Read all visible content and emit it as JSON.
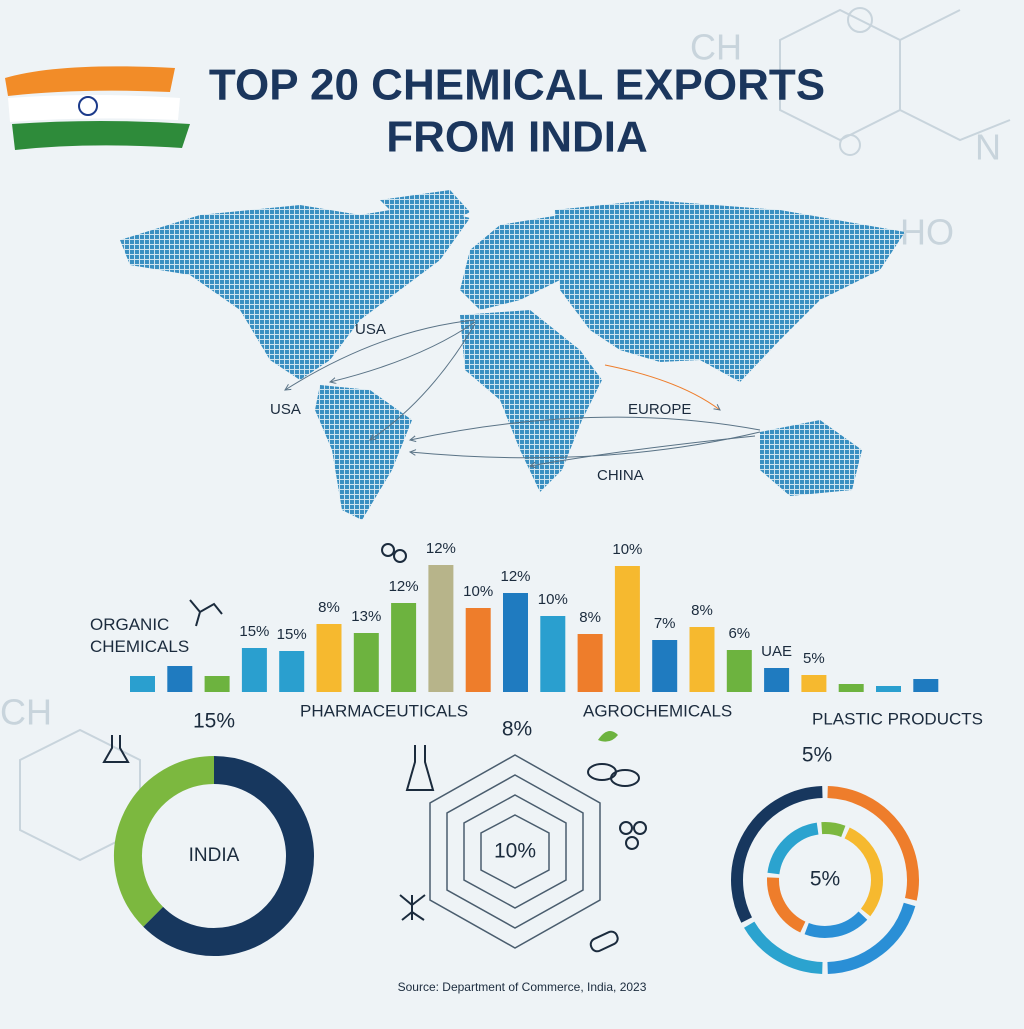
{
  "header": {
    "title_lines": [
      "TOP 20 CHEMICAL EXPORTS",
      "FROM INDIA"
    ]
  },
  "map": {
    "labels": [
      "USA",
      "USA",
      "EUROPE",
      "CHINA"
    ]
  },
  "hexagon": {
    "label": "8%",
    "center": "10%"
  },
  "source": "Source: Department of Commerce, India, 2023",
  "chart_data": [
    {
      "type": "bar",
      "group_labels": [
        "ORGANIC CHEMICALS",
        "PHARMACEUTICALS",
        "AGROCHEMICALS",
        "PLASTIC PRODUCTS"
      ],
      "values": [
        16,
        26,
        16,
        44,
        41,
        68,
        59,
        89,
        127,
        84,
        99,
        76,
        58,
        126,
        52,
        65,
        42,
        24,
        17,
        8,
        6,
        13
      ],
      "labels": [
        null,
        null,
        null,
        "15%",
        "15%",
        "8%",
        "13%",
        "12%",
        "12%",
        "10%",
        "12%",
        "10%",
        "8%",
        "10%",
        "7%",
        "8%",
        "6%",
        "UAE",
        "5%",
        null,
        null,
        null
      ],
      "colors": [
        "#2a9fcf",
        "#1f7bc0",
        "#6db33f",
        "#2a9fcf",
        "#2a9fcf",
        "#f6b92f",
        "#6db33f",
        "#6db33f",
        "#b7b48a",
        "#ee7d2b",
        "#1f7bc0",
        "#2a9fcf",
        "#ee7d2b",
        "#f6b92f",
        "#1f7bc0",
        "#f6b92f",
        "#6db33f",
        "#1f7bc0",
        "#f6b92f",
        "#6db33f",
        "#2a9fcf",
        "#1f7bc0"
      ],
      "ylim": [
        0,
        130
      ]
    },
    {
      "type": "donut",
      "title": "15%",
      "center_label": "INDIA",
      "values": [
        37.5,
        62.5
      ],
      "colors": [
        "#7cb83f",
        "#17375e"
      ]
    },
    {
      "type": "donut",
      "title": "5%",
      "center_label": "5%",
      "rings": [
        {
          "values": [
            29,
            21,
            17,
            33
          ],
          "colors": [
            "#ee7d2b",
            "#2a8fd6",
            "#2ba3cf",
            "#17375e"
          ]
        },
        {
          "values": [
            30,
            20,
            20,
            22,
            8
          ],
          "colors": [
            "#f6b92f",
            "#2a8fd6",
            "#ee7d2b",
            "#2ba3cf",
            "#7cb83f"
          ]
        }
      ]
    }
  ]
}
